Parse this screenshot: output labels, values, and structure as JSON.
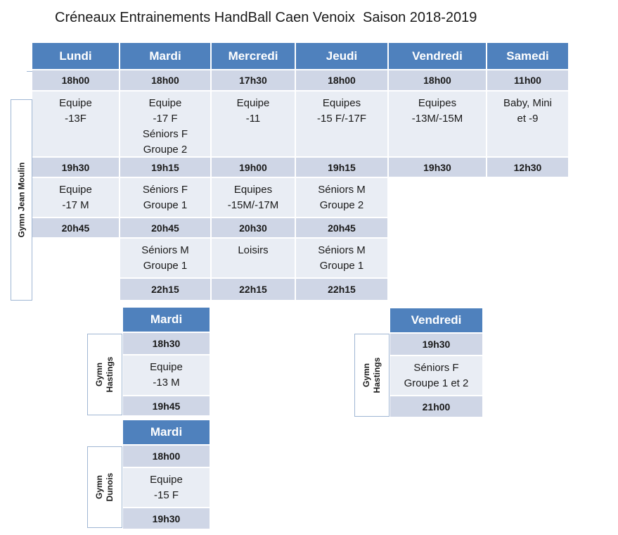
{
  "title": "Créneaux Entrainements HandBall Caen Venoix  Saison 2018-2019",
  "main_grid": {
    "location": "Gymn Jean Moulin",
    "days": [
      "Lundi",
      "Mardi",
      "Mercredi",
      "Jeudi",
      "Vendredi",
      "Samedi"
    ],
    "row1_times": [
      "18h00",
      "18h00",
      "17h30",
      "18h00",
      "18h00",
      "11h00"
    ],
    "row1_groups": [
      "Equipe\n-13F",
      "Equipe\n-17 F\nSéniors F\nGroupe 2",
      "Equipe\n-11",
      "Equipes\n-15 F/-17F",
      "Equipes\n-13M/-15M",
      "Baby,  Mini\net -9"
    ],
    "row2_times": [
      "19h30",
      "19h15",
      "19h00",
      "19h15",
      "19h30",
      "12h30"
    ],
    "row2_groups": [
      "Equipe\n-17 M",
      "Séniors F\nGroupe 1",
      "Equipes\n-15M/-17M",
      "Séniors M\nGroupe 2"
    ],
    "row3_times": [
      "20h45",
      "20h45",
      "20h30",
      "20h45"
    ],
    "row3_groups": [
      "Séniors M\nGroupe 1",
      "Loisirs",
      "Séniors M\nGroupe 1"
    ],
    "row4_times": [
      "22h15",
      "22h15",
      "22h15"
    ]
  },
  "hastings_mardi": {
    "location": "Gymn\nHastings",
    "day": "Mardi",
    "start": "18h30",
    "group": "Equipe\n-13 M",
    "end": "19h45"
  },
  "dunois_mardi": {
    "location": "Gymn\nDunois",
    "day": "Mardi",
    "start": "18h00",
    "group": "Equipe\n-15 F",
    "end": "19h30"
  },
  "hastings_vendredi": {
    "location": "Gymn\nHastings",
    "day": "Vendredi",
    "start": "19h30",
    "group": "Séniors F\nGroupe 1 et 2",
    "end": "21h00"
  }
}
